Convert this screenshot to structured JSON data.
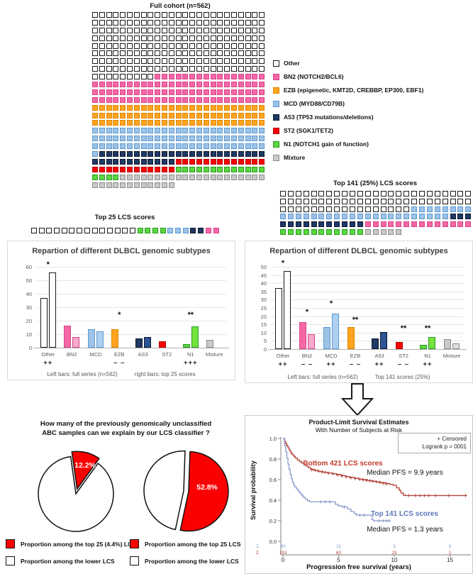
{
  "palette": {
    "Other": {
      "fill": "#ffffff",
      "border": "#1a1a1a",
      "fill2": "#ffffff"
    },
    "BN2": {
      "fill": "#f568a5",
      "border": "#d9438c",
      "fill2": "#f9a9ca"
    },
    "EZB": {
      "fill": "#ffa41e",
      "border": "#e08600",
      "fill2": "#ffb84d"
    },
    "MCD": {
      "fill": "#9dc3e6",
      "border": "#5b9bd5",
      "fill2": "#aecfee"
    },
    "A53": {
      "fill": "#203864",
      "border": "#0c1930",
      "fill2": "#2e5394"
    },
    "ST2": {
      "fill": "#fb0000",
      "border": "#b30000",
      "fill2": "#fb2a2a"
    },
    "N1": {
      "fill": "#5cd63f",
      "border": "#279b1f",
      "fill2": "#74e23c"
    },
    "Mixture": {
      "fill": "#c9c9c9",
      "border": "#8c8c8c",
      "fill2": "#dedede"
    }
  },
  "legend": {
    "items": [
      {
        "key": "Other",
        "label": "Other"
      },
      {
        "key": "BN2",
        "label": "BN2 (NOTCH2/BCL6)"
      },
      {
        "key": "EZB",
        "label": "EZB (epigenetic, KMT2D, CREBBP, EP300, EBF1)"
      },
      {
        "key": "MCD",
        "label": "MCD (MYD88/CD79B)"
      },
      {
        "key": "A53",
        "label": "A53 (TP53 mutations/deletions)"
      },
      {
        "key": "ST2",
        "label": "ST2 (SGK1/TET2)"
      },
      {
        "key": "N1",
        "label": "N1 (NOTCH1 gain of function)"
      },
      {
        "key": "Mixture",
        "label": "Mixture"
      }
    ]
  },
  "question": {
    "line1": "How many of the previously genomically unclassified",
    "line2": "ABC samples can we explain by our LCS classifier ?"
  },
  "chart_data": [
    {
      "id": "full_cohort_waffle",
      "type": "waffle",
      "title": "Full cohort (n=562)",
      "cols": 25,
      "segments": [
        {
          "label": "Other",
          "count": 209
        },
        {
          "label": "BN2",
          "count": 91
        },
        {
          "label": "EZB",
          "count": 75
        },
        {
          "label": "MCD",
          "count": 76
        },
        {
          "label": "A53",
          "count": 36
        },
        {
          "label": "ST2",
          "count": 25
        },
        {
          "label": "N1",
          "count": 17
        },
        {
          "label": "Mixture",
          "count": 33
        }
      ]
    },
    {
      "id": "top25_waffle",
      "type": "waffle",
      "title": "Top 25 LCS scores",
      "cols": 25,
      "segments": [
        {
          "label": "Other",
          "count": 14
        },
        {
          "label": "N1",
          "count": 4
        },
        {
          "label": "MCD",
          "count": 3
        },
        {
          "label": "A53",
          "count": 2
        },
        {
          "label": "BN2",
          "count": 2
        }
      ]
    },
    {
      "id": "bars_top25",
      "type": "bar",
      "title": "Repartion of different DLBCL genomic subtypes",
      "categories": [
        "Other",
        "BN2",
        "MCD",
        "EZB",
        "AS3",
        "ST2",
        "N1",
        "Mixture"
      ],
      "palette_keys": [
        "Other",
        "BN2",
        "MCD",
        "EZB",
        "A53",
        "ST2",
        "N1",
        "Mixture"
      ],
      "series": [
        {
          "name": "Full series (n=562)",
          "values": [
            37,
            16.5,
            13.5,
            13.5,
            7,
            5,
            2.5,
            6
          ]
        },
        {
          "name": "Top 25 scores",
          "values": [
            56,
            8,
            12,
            0,
            8,
            0,
            16,
            0
          ]
        }
      ],
      "ylim": [
        0,
        60
      ],
      "ytick_step": 10,
      "significance": [
        {
          "cat": "Other",
          "value": 58,
          "stars": "*"
        },
        {
          "cat": "EZB",
          "value": 20.5,
          "stars": "*"
        },
        {
          "cat": "N1",
          "value": 20.5,
          "stars": "**"
        }
      ],
      "marks": {
        "Other": "++",
        "EZB": "– –",
        "N1": "+++"
      },
      "footnote_left": "Left bars: full series (n=562)",
      "footnote_right": "right bars: top 25 scores"
    },
    {
      "id": "top141_waffle",
      "type": "waffle",
      "title": "Top 141 (25%) LCS scores",
      "cols": 25,
      "segments": [
        {
          "label": "Other",
          "count": 67
        },
        {
          "label": "MCD",
          "count": 30
        },
        {
          "label": "A53",
          "count": 14
        },
        {
          "label": "BN2",
          "count": 14
        },
        {
          "label": "N1",
          "count": 11
        },
        {
          "label": "Mixture",
          "count": 5
        }
      ]
    },
    {
      "id": "bars_top141",
      "type": "bar",
      "title": "Repartion of different DLBCL genomic subtypes",
      "categories": [
        "Other",
        "BN2",
        "MCD",
        "EZB",
        "A53",
        "ST2",
        "N1",
        "Mixture"
      ],
      "palette_keys": [
        "Other",
        "BN2",
        "MCD",
        "EZB",
        "A53",
        "ST2",
        "N1",
        "Mixture"
      ],
      "series": [
        {
          "name": "Full series (n=562)",
          "values": [
            37,
            16.5,
            13.5,
            13.5,
            6.5,
            4.5,
            2.5,
            6
          ]
        },
        {
          "name": "Top 141 scores (25%)",
          "values": [
            47.5,
            9,
            21.5,
            0,
            10.5,
            0,
            7.5,
            3.5
          ]
        }
      ],
      "ylim": [
        0,
        50
      ],
      "ytick_step": 5,
      "significance": [
        {
          "cat": "Other",
          "value": 49,
          "stars": "*"
        },
        {
          "cat": "BN2",
          "value": 19.5,
          "stars": "*"
        },
        {
          "cat": "MCD",
          "value": 24.5,
          "stars": "*"
        },
        {
          "cat": "EZB",
          "value": 14.8,
          "stars": "**"
        },
        {
          "cat": "ST2",
          "value": 9.3,
          "stars": "**"
        },
        {
          "cat": "N1",
          "value": 9.3,
          "stars": "**"
        }
      ],
      "marks": {
        "Other": "++",
        "BN2": "– –",
        "MCD": "++",
        "EZB": "– –",
        "A53": "++",
        "ST2": "– –",
        "N1": "++"
      },
      "footnote_left": "Left bars: full series (n=562)",
      "footnote_right": "Top 141 scores (25%)"
    },
    {
      "id": "pie_top25_small",
      "type": "pie",
      "start_angle": -8,
      "slices": [
        {
          "key": "top25",
          "label": "Proportion among the top 25 (4.4%) LCS",
          "value": 12.2,
          "fill": "#fb0000",
          "explode": 7
        },
        {
          "key": "lower",
          "label": "Proportion among the lower LCS",
          "value": 87.8,
          "fill": "#ffffff",
          "explode": 0
        }
      ],
      "value_label": {
        "text": "12.2%",
        "x": 92,
        "y": 30
      },
      "legend": [
        {
          "fill": "#fb0000",
          "label": "Proportion among the top 25 (4.4%) LCS",
          "swatch_name": "red-swatch"
        },
        {
          "fill": "#ffffff",
          "label": "Proportion among the lower LCS",
          "swatch_name": "white-swatch"
        }
      ]
    },
    {
      "id": "pie_top25_abc",
      "type": "pie",
      "start_angle": 2,
      "slices": [
        {
          "key": "top25",
          "label": "Proportion among the top 25 LCS",
          "value": 52.8,
          "fill": "#fb0000",
          "explode": 4
        },
        {
          "key": "lower",
          "label": "Proportion among the lower LCS",
          "value": 47.2,
          "fill": "#ffffff",
          "explode": 3
        }
      ],
      "value_label": {
        "text": "52.8%",
        "x": 102,
        "y": 67
      },
      "legend": [
        {
          "fill": "#fb0000",
          "label": "Proportion among the top 25 LCS",
          "swatch_name": "red-swatch"
        },
        {
          "fill": "#ffffff",
          "label": "Proportion among the lower LCS",
          "swatch_name": "white-swatch"
        }
      ]
    },
    {
      "id": "km",
      "type": "line",
      "title": "Product-Limit Survival Estimates",
      "subtitle": "With Number of Subjects at Risk",
      "xlabel": "Progression free survival (years)",
      "ylabel": "Survival probability",
      "xticks": [
        0,
        5,
        10,
        15
      ],
      "yticks": [
        "1.0",
        "0.8",
        "0.6",
        "0.4",
        "0.2",
        "0.0"
      ],
      "censored_note": "+ Censored",
      "logrank": "Logrank p = 0001",
      "series": [
        {
          "name": "Bottom 421 LCS scores",
          "median": "Median PFS = 9.9 years",
          "color": "#b5483f",
          "label_color": "#c1392b",
          "points": [
            [
              0,
              1
            ],
            [
              0.15,
              0.97
            ],
            [
              0.25,
              0.95
            ],
            [
              0.35,
              0.93
            ],
            [
              0.45,
              0.91
            ],
            [
              0.55,
              0.89
            ],
            [
              0.65,
              0.87
            ],
            [
              0.75,
              0.855
            ],
            [
              0.85,
              0.84
            ],
            [
              1.0,
              0.825
            ],
            [
              1.1,
              0.81
            ],
            [
              1.3,
              0.79
            ],
            [
              1.5,
              0.775
            ],
            [
              1.7,
              0.76
            ],
            [
              1.9,
              0.745
            ],
            [
              2.1,
              0.73
            ],
            [
              2.3,
              0.715
            ],
            [
              2.5,
              0.7
            ],
            [
              2.8,
              0.69
            ],
            [
              3.2,
              0.68
            ],
            [
              3.6,
              0.672
            ],
            [
              4.0,
              0.665
            ],
            [
              4.4,
              0.658
            ],
            [
              4.8,
              0.65
            ],
            [
              5.2,
              0.64
            ],
            [
              5.6,
              0.63
            ],
            [
              6.0,
              0.622
            ],
            [
              6.4,
              0.613
            ],
            [
              6.8,
              0.605
            ],
            [
              7.2,
              0.6
            ],
            [
              7.6,
              0.592
            ],
            [
              8.0,
              0.585
            ],
            [
              8.4,
              0.578
            ],
            [
              8.8,
              0.57
            ],
            [
              9.2,
              0.562
            ],
            [
              9.6,
              0.553
            ],
            [
              9.9,
              0.545
            ],
            [
              10.2,
              0.52
            ],
            [
              10.45,
              0.495
            ],
            [
              10.6,
              0.47
            ],
            [
              10.8,
              0.45
            ],
            [
              11.0,
              0.445
            ],
            [
              16.5,
              0.445
            ]
          ],
          "censors": [
            [
              2.6,
              0.695
            ],
            [
              2.9,
              0.69
            ],
            [
              3.2,
              0.682
            ],
            [
              3.5,
              0.675
            ],
            [
              3.8,
              0.67
            ],
            [
              4.1,
              0.662
            ],
            [
              4.5,
              0.655
            ],
            [
              4.9,
              0.645
            ],
            [
              5.3,
              0.635
            ],
            [
              5.7,
              0.627
            ],
            [
              6.1,
              0.617
            ],
            [
              6.5,
              0.61
            ],
            [
              6.9,
              0.602
            ],
            [
              7.2,
              0.598
            ],
            [
              7.5,
              0.592
            ],
            [
              7.8,
              0.588
            ],
            [
              8.1,
              0.582
            ],
            [
              8.4,
              0.578
            ],
            [
              8.7,
              0.572
            ],
            [
              9.0,
              0.565
            ],
            [
              9.3,
              0.558
            ],
            [
              11.3,
              0.445
            ],
            [
              11.9,
              0.445
            ],
            [
              12.3,
              0.445
            ],
            [
              12.7,
              0.445
            ],
            [
              13.1,
              0.445
            ],
            [
              13.7,
              0.445
            ],
            [
              14.9,
              0.445
            ],
            [
              16.4,
              0.445
            ]
          ]
        },
        {
          "name": "Top 141 LCS scores",
          "median": "Median PFS = 1.3 years",
          "color": "#8293c8",
          "label_color": "#5b76be",
          "points": [
            [
              0,
              1
            ],
            [
              0.15,
              0.93
            ],
            [
              0.25,
              0.87
            ],
            [
              0.35,
              0.81
            ],
            [
              0.45,
              0.75
            ],
            [
              0.55,
              0.7
            ],
            [
              0.65,
              0.65
            ],
            [
              0.75,
              0.61
            ],
            [
              0.85,
              0.575
            ],
            [
              0.95,
              0.55
            ],
            [
              1.05,
              0.53
            ],
            [
              1.2,
              0.51
            ],
            [
              1.35,
              0.49
            ],
            [
              1.5,
              0.47
            ],
            [
              1.65,
              0.45
            ],
            [
              1.8,
              0.43
            ],
            [
              2.0,
              0.41
            ],
            [
              2.2,
              0.395
            ],
            [
              2.4,
              0.385
            ],
            [
              4.5,
              0.385
            ],
            [
              4.7,
              0.36
            ],
            [
              4.95,
              0.345
            ],
            [
              5.3,
              0.335
            ],
            [
              5.8,
              0.315
            ],
            [
              6.1,
              0.29
            ],
            [
              6.4,
              0.27
            ],
            [
              6.6,
              0.255
            ],
            [
              7.8,
              0.255
            ],
            [
              8.0,
              0.21
            ],
            [
              8.15,
              0.2
            ],
            [
              9.6,
              0.2
            ]
          ],
          "censors": [
            [
              3.4,
              0.385
            ],
            [
              3.8,
              0.385
            ],
            [
              4.2,
              0.385
            ],
            [
              5.5,
              0.335
            ],
            [
              6.9,
              0.255
            ],
            [
              7.3,
              0.255
            ],
            [
              8.6,
              0.2
            ],
            [
              9.0,
              0.2
            ],
            [
              9.3,
              0.2
            ],
            [
              9.55,
              0.2
            ]
          ]
        }
      ],
      "at_risk": {
        "row_labels": [
          "1",
          "2"
        ],
        "row_colors": [
          "#8293c8",
          "#b5483f"
        ],
        "times": [
          0,
          5,
          10,
          15
        ],
        "values": [
          [
            "40",
            "11",
            "3",
            "0"
          ],
          [
            "193",
            "60",
            "25",
            "1"
          ]
        ]
      }
    }
  ]
}
